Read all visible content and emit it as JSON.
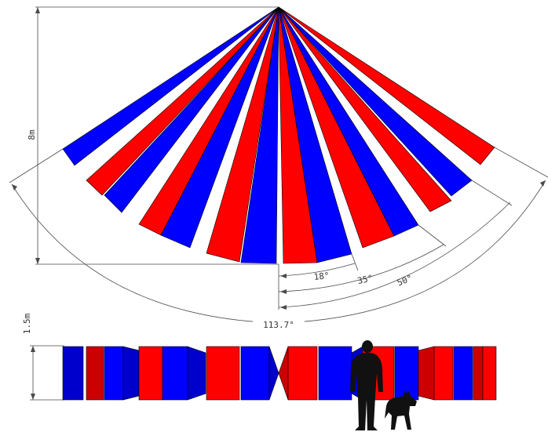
{
  "labels": {
    "height": "8m",
    "mount_height": "1.5m",
    "angle_18": "18°",
    "angle_35": "35°",
    "angle_50": "50°",
    "angle_total": "113.7°"
  },
  "colors": {
    "red": "#ff0000",
    "blue": "#0000ff",
    "dark_red": "#cc0000",
    "dark_blue": "#0000cc",
    "silhouette": "#111111",
    "dimension_line": "#4a4a4a"
  },
  "icons": [
    "person-silhouette-icon",
    "dog-silhouette-icon"
  ]
}
